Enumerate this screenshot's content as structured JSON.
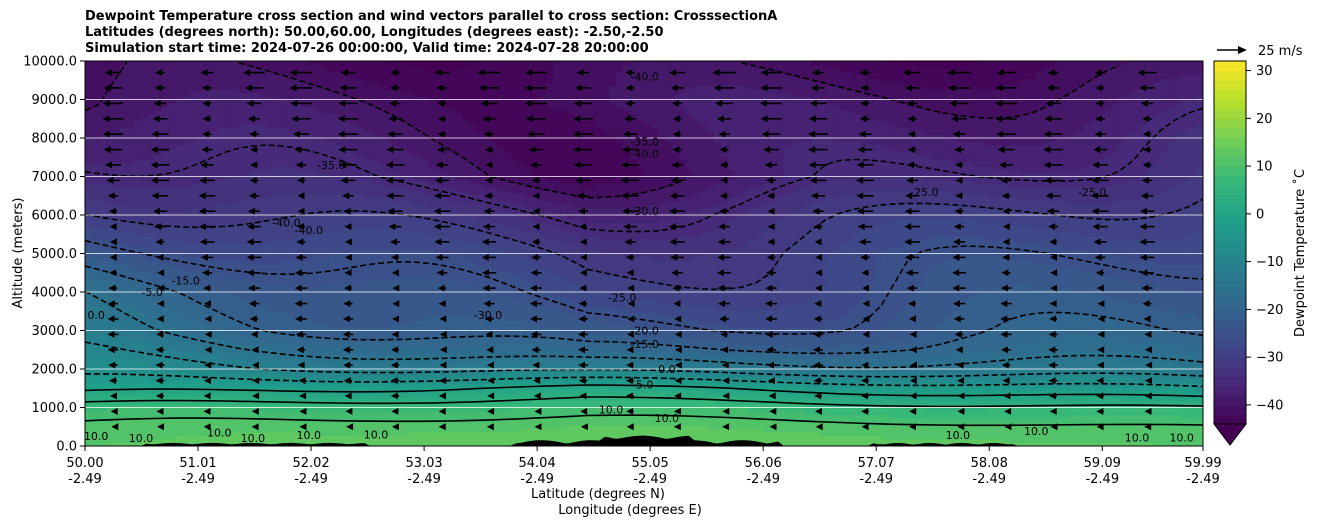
{
  "chart_data": {
    "type": "heatmap",
    "title_lines": [
      "Dewpoint Temperature cross section and wind vectors parallel to cross section: CrosssectionA",
      "Latitudes (degrees north): 50.00,60.00, Longitudes (degrees east): -2.50,-2.50",
      "Simulation start time: 2024-07-26 00:00:00, Valid time: 2024-07-28 20:00:00"
    ],
    "xlabel_lines": [
      "Latitude (degrees N)",
      "Longitude (degrees E)"
    ],
    "ylabel": "Altitude (meters)",
    "x_ticks": [
      {
        "lat": "50.00",
        "lon": "-2.49"
      },
      {
        "lat": "51.01",
        "lon": "-2.49"
      },
      {
        "lat": "52.02",
        "lon": "-2.49"
      },
      {
        "lat": "53.03",
        "lon": "-2.49"
      },
      {
        "lat": "54.04",
        "lon": "-2.49"
      },
      {
        "lat": "55.05",
        "lon": "-2.49"
      },
      {
        "lat": "56.06",
        "lon": "-2.49"
      },
      {
        "lat": "57.07",
        "lon": "-2.49"
      },
      {
        "lat": "58.08",
        "lon": "-2.49"
      },
      {
        "lat": "59.09",
        "lon": "-2.49"
      },
      {
        "lat": "59.99",
        "lon": "-2.49"
      }
    ],
    "y_ticks": [
      "0.0",
      "1000.0",
      "2000.0",
      "3000.0",
      "4000.0",
      "5000.0",
      "6000.0",
      "7000.0",
      "8000.0",
      "9000.0",
      "10000.0"
    ],
    "xlim": [
      50.0,
      59.99
    ],
    "ylim": [
      0,
      10000
    ],
    "grid": "horizontal",
    "colorbar": {
      "label": "Dewpoint Temperature ˚C",
      "ticks": [
        "−40",
        "−30",
        "−20",
        "−10",
        "0",
        "10",
        "20",
        "30"
      ],
      "range": [
        -44,
        32
      ],
      "extend": "min",
      "colormap": "viridis"
    },
    "quiver_key": "25 m/s",
    "wind_direction": "left",
    "dewpoint_profile": {
      "altitude_m": [
        0,
        500,
        1000,
        1500,
        2000,
        2500,
        3000,
        3500,
        4000,
        5000,
        6000,
        7000,
        8000,
        9000,
        10000
      ],
      "southern_end_c": [
        12,
        11,
        7,
        -2,
        -8,
        -11,
        -14,
        -15,
        -16,
        -22,
        -28,
        -32,
        -36,
        -40,
        -42
      ],
      "central_c": [
        14,
        12,
        8,
        1,
        -12,
        -20,
        -25,
        -27,
        -29,
        -31,
        -35,
        -41,
        -41,
        -40,
        -42
      ],
      "northern_end_c": [
        12,
        10,
        5,
        -5,
        -14,
        -18,
        -20,
        -21,
        -22,
        -24,
        -27,
        -31,
        -34,
        -38,
        -42
      ]
    },
    "contour_labels": [
      {
        "text": "10.0",
        "lat": 50.1,
        "alt": 150
      },
      {
        "text": "10.0",
        "lat": 50.5,
        "alt": 100
      },
      {
        "text": "10.0",
        "lat": 51.2,
        "alt": 250
      },
      {
        "text": "10.0",
        "lat": 51.5,
        "alt": 100
      },
      {
        "text": "10.0",
        "lat": 52.0,
        "alt": 180
      },
      {
        "text": "10.0",
        "lat": 52.6,
        "alt": 200
      },
      {
        "text": "10.0",
        "lat": 54.7,
        "alt": 850
      },
      {
        "text": "10.0",
        "lat": 55.2,
        "alt": 620
      },
      {
        "text": "10.0",
        "lat": 57.8,
        "alt": 180
      },
      {
        "text": "10.0",
        "lat": 58.5,
        "alt": 280
      },
      {
        "text": "10.0",
        "lat": 59.4,
        "alt": 120
      },
      {
        "text": "10.0",
        "lat": 59.8,
        "alt": 120
      },
      {
        "text": "5.0",
        "lat": 55.0,
        "alt": 1500
      },
      {
        "text": "0.0",
        "lat": 55.2,
        "alt": 1900
      },
      {
        "text": "0.0",
        "lat": 50.1,
        "alt": 3300
      },
      {
        "text": "-5.0",
        "lat": 50.6,
        "alt": 3900
      },
      {
        "text": "-15.0",
        "lat": 50.9,
        "alt": 4200
      },
      {
        "text": "-15.0",
        "lat": 55.0,
        "alt": 2550
      },
      {
        "text": "-20.0",
        "lat": 55.0,
        "alt": 2900
      },
      {
        "text": "-25.0",
        "lat": 54.8,
        "alt": 3750
      },
      {
        "text": "-30.0",
        "lat": 53.6,
        "alt": 3300
      },
      {
        "text": "-30.0",
        "lat": 55.0,
        "alt": 6000
      },
      {
        "text": "-40.0",
        "lat": 51.8,
        "alt": 5700
      },
      {
        "text": "-40.0",
        "lat": 52.0,
        "alt": 5500
      },
      {
        "text": "-35.0",
        "lat": 52.2,
        "alt": 7200
      },
      {
        "text": "-35.0",
        "lat": 55.0,
        "alt": 7800
      },
      {
        "text": "-40.0",
        "lat": 55.0,
        "alt": 7500
      },
      {
        "text": "-40.0",
        "lat": 55.0,
        "alt": 9500
      },
      {
        "text": "-25.0",
        "lat": 57.5,
        "alt": 6500
      },
      {
        "text": "-25.0",
        "lat": 59.0,
        "alt": 6500
      }
    ]
  }
}
